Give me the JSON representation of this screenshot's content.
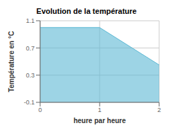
{
  "chart_data": {
    "type": "area",
    "title": "Evolution de la température",
    "xlabel": "heure par heure",
    "ylabel": "Température en °C",
    "x": [
      0,
      1,
      2
    ],
    "values": [
      1.0,
      1.0,
      0.45
    ],
    "xlim": [
      0,
      2
    ],
    "ylim": [
      -0.1,
      1.1
    ],
    "xticks": [
      0,
      1,
      2
    ],
    "yticks": [
      -0.1,
      0.3,
      0.7,
      1.1
    ],
    "color": "#5bb8d4",
    "grid": true
  }
}
